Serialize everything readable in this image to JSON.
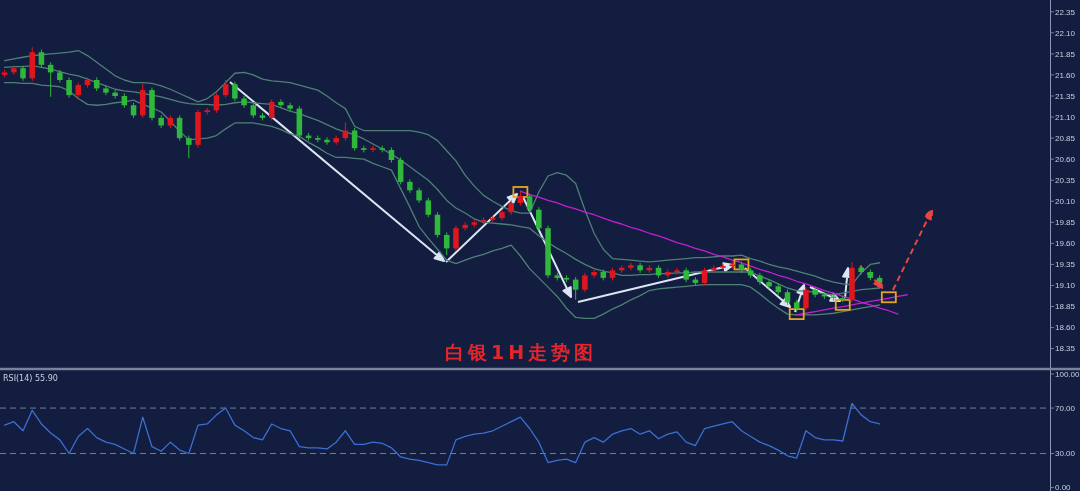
{
  "chart_data": [
    {
      "type": "candlestick",
      "title": "白银1H走势图",
      "categories": [
        null,
        null,
        null,
        null,
        null,
        null,
        null,
        null,
        null,
        null,
        null,
        null,
        null,
        null,
        null,
        null,
        null,
        null,
        null,
        null,
        null,
        null,
        null,
        null,
        null,
        null,
        null,
        null,
        null,
        null,
        null,
        null,
        null,
        null,
        null,
        null,
        null,
        null,
        null,
        null,
        null,
        null,
        null,
        null,
        null,
        null,
        null,
        null,
        null,
        null,
        null,
        null,
        null,
        null,
        null,
        null,
        null,
        null,
        null,
        null,
        null,
        null,
        null,
        null,
        null,
        null,
        null,
        null,
        null,
        null,
        null,
        null,
        null,
        null,
        null,
        null,
        null,
        null,
        null,
        null,
        null,
        null,
        null,
        null,
        null,
        null,
        null,
        null,
        null,
        null,
        null,
        null,
        null,
        null,
        null,
        null,
        null,
        null,
        null,
        null,
        null,
        null,
        null,
        null,
        null,
        null,
        null,
        null,
        null,
        null,
        null,
        null,
        null,
        null
      ],
      "ohlc": [
        [
          21.6,
          21.66,
          21.57,
          21.63
        ],
        [
          21.63,
          21.71,
          21.6,
          21.68
        ],
        [
          21.68,
          21.71,
          21.53,
          21.56
        ],
        [
          21.56,
          21.93,
          21.53,
          21.87
        ],
        [
          21.87,
          21.9,
          21.69,
          21.72
        ],
        [
          21.72,
          21.75,
          21.34,
          21.63
        ],
        [
          21.63,
          21.66,
          21.51,
          21.54
        ],
        [
          21.54,
          21.57,
          21.33,
          21.36
        ],
        [
          21.36,
          21.51,
          21.33,
          21.48
        ],
        [
          21.48,
          21.57,
          21.45,
          21.54
        ],
        [
          21.54,
          21.57,
          21.41,
          21.44
        ],
        [
          21.44,
          21.47,
          21.36,
          21.39
        ],
        [
          21.39,
          21.42,
          21.32,
          21.35
        ],
        [
          21.35,
          21.38,
          21.21,
          21.24
        ],
        [
          21.24,
          21.27,
          21.09,
          21.12
        ],
        [
          21.12,
          21.5,
          21.09,
          21.42
        ],
        [
          21.42,
          21.45,
          21.06,
          21.09
        ],
        [
          21.09,
          21.12,
          20.97,
          21.0
        ],
        [
          21.0,
          21.12,
          20.97,
          21.09
        ],
        [
          21.09,
          21.12,
          20.82,
          20.85
        ],
        [
          20.85,
          20.88,
          20.61,
          20.77
        ],
        [
          20.77,
          21.19,
          20.74,
          21.16
        ],
        [
          21.16,
          21.21,
          21.13,
          21.18
        ],
        [
          21.18,
          21.39,
          21.15,
          21.36
        ],
        [
          21.36,
          21.54,
          21.33,
          21.49
        ],
        [
          21.49,
          21.52,
          21.29,
          21.32
        ],
        [
          21.32,
          21.35,
          21.21,
          21.24
        ],
        [
          21.24,
          21.27,
          21.09,
          21.12
        ],
        [
          21.12,
          21.15,
          21.06,
          21.09
        ],
        [
          21.09,
          21.31,
          21.06,
          21.28
        ],
        [
          21.28,
          21.31,
          21.21,
          21.24
        ],
        [
          21.24,
          21.27,
          21.17,
          21.2
        ],
        [
          21.2,
          21.23,
          20.85,
          20.88
        ],
        [
          20.88,
          20.91,
          20.82,
          20.85
        ],
        [
          20.85,
          20.88,
          20.8,
          20.83
        ],
        [
          20.83,
          20.86,
          20.77,
          20.8
        ],
        [
          20.8,
          20.88,
          20.77,
          20.85
        ],
        [
          20.85,
          21.04,
          20.82,
          20.94
        ],
        [
          20.94,
          20.97,
          20.7,
          20.73
        ],
        [
          20.73,
          20.76,
          20.68,
          20.71
        ],
        [
          20.71,
          20.76,
          20.68,
          20.73
        ],
        [
          20.73,
          20.76,
          20.68,
          20.71
        ],
        [
          20.71,
          20.74,
          20.56,
          20.59
        ],
        [
          20.59,
          20.62,
          20.3,
          20.33
        ],
        [
          20.33,
          20.36,
          20.2,
          20.23
        ],
        [
          20.23,
          20.26,
          20.08,
          20.11
        ],
        [
          20.11,
          20.14,
          19.91,
          19.94
        ],
        [
          19.94,
          19.97,
          19.67,
          19.7
        ],
        [
          19.7,
          19.73,
          19.46,
          19.54
        ],
        [
          19.54,
          19.81,
          19.51,
          19.78
        ],
        [
          19.78,
          19.85,
          19.75,
          19.82
        ],
        [
          19.82,
          19.88,
          19.79,
          19.85
        ],
        [
          19.85,
          19.91,
          19.82,
          19.88
        ],
        [
          19.88,
          19.93,
          19.85,
          19.9
        ],
        [
          19.9,
          20.0,
          19.87,
          19.97
        ],
        [
          19.97,
          20.11,
          19.94,
          20.08
        ],
        [
          20.08,
          20.22,
          20.05,
          20.16
        ],
        [
          20.16,
          20.19,
          19.97,
          20.0
        ],
        [
          20.0,
          20.03,
          19.75,
          19.78
        ],
        [
          19.78,
          19.81,
          19.19,
          19.22
        ],
        [
          19.22,
          19.25,
          19.16,
          19.19
        ],
        [
          19.19,
          19.22,
          19.14,
          19.17
        ],
        [
          19.17,
          19.2,
          18.93,
          19.05
        ],
        [
          19.05,
          19.25,
          19.02,
          19.22
        ],
        [
          19.22,
          19.29,
          19.19,
          19.26
        ],
        [
          19.26,
          19.29,
          19.16,
          19.19
        ],
        [
          19.19,
          19.31,
          19.16,
          19.28
        ],
        [
          19.28,
          19.34,
          19.25,
          19.31
        ],
        [
          19.31,
          19.37,
          19.28,
          19.34
        ],
        [
          19.34,
          19.37,
          19.25,
          19.28
        ],
        [
          19.28,
          19.34,
          19.25,
          19.31
        ],
        [
          19.31,
          19.34,
          19.19,
          19.22
        ],
        [
          19.22,
          19.29,
          19.19,
          19.26
        ],
        [
          19.26,
          19.31,
          19.23,
          19.28
        ],
        [
          19.28,
          19.31,
          19.14,
          19.17
        ],
        [
          19.17,
          19.2,
          19.1,
          19.13
        ],
        [
          19.13,
          19.31,
          19.1,
          19.28
        ],
        [
          19.28,
          19.34,
          19.25,
          19.31
        ],
        [
          19.31,
          19.36,
          19.28,
          19.33
        ],
        [
          19.33,
          19.38,
          19.3,
          19.35
        ],
        [
          19.35,
          19.38,
          19.25,
          19.28
        ],
        [
          19.28,
          19.31,
          19.19,
          19.22
        ],
        [
          19.22,
          19.25,
          19.11,
          19.14
        ],
        [
          19.14,
          19.17,
          19.06,
          19.09
        ],
        [
          19.09,
          19.12,
          18.99,
          19.02
        ],
        [
          19.02,
          19.05,
          18.87,
          18.9
        ],
        [
          18.9,
          18.93,
          18.78,
          18.83
        ],
        [
          18.83,
          19.08,
          18.8,
          19.05
        ],
        [
          19.05,
          19.08,
          18.96,
          18.99
        ],
        [
          18.99,
          19.02,
          18.94,
          18.97
        ],
        [
          18.97,
          19.0,
          18.92,
          18.95
        ],
        [
          18.95,
          18.98,
          18.9,
          18.93
        ],
        [
          18.93,
          19.38,
          18.9,
          19.31
        ],
        [
          19.31,
          19.34,
          19.23,
          19.26
        ],
        [
          19.26,
          19.29,
          19.16,
          19.19
        ],
        [
          19.19,
          19.22,
          19.11,
          19.14
        ],
        null,
        null,
        null,
        null,
        null,
        null,
        null,
        null,
        null,
        null,
        null,
        null,
        null,
        null,
        null,
        null,
        null,
        null
      ],
      "colors": [
        "#e0161e",
        "#e0161e",
        "#2fb83c",
        "#e0161e",
        "#2fb83c",
        "#2fb83c",
        "#2fb83c",
        "#2fb83c",
        "#e0161e",
        "#e0161e",
        "#2fb83c",
        "#2fb83c",
        "#2fb83c",
        "#2fb83c",
        "#2fb83c",
        "#e0161e",
        "#2fb83c",
        "#2fb83c",
        "#e0161e",
        "#2fb83c",
        "#2fb83c",
        "#e0161e",
        "#e0161e",
        "#e0161e",
        "#e0161e",
        "#2fb83c",
        "#2fb83c",
        "#2fb83c",
        "#2fb83c",
        "#e0161e",
        "#2fb83c",
        "#2fb83c",
        "#2fb83c",
        "#2fb83c",
        "#2fb83c",
        "#2fb83c",
        "#e0161e",
        "#e0161e",
        "#2fb83c",
        "#2fb83c",
        "#e0161e",
        "#2fb83c",
        "#2fb83c",
        "#2fb83c",
        "#2fb83c",
        "#2fb83c",
        "#2fb83c",
        "#2fb83c",
        "#2fb83c",
        "#e0161e",
        "#e0161e",
        "#e0161e",
        "#e0161e",
        "#e0161e",
        "#e0161e",
        "#e0161e",
        "#e0161e",
        "#2fb83c",
        "#2fb83c",
        "#2fb83c",
        "#2fb83c",
        "#2fb83c",
        "#2fb83c",
        "#e0161e",
        "#e0161e",
        "#2fb83c",
        "#e0161e",
        "#e0161e",
        "#e0161e",
        "#2fb83c",
        "#e0161e",
        "#2fb83c",
        "#e0161e",
        "#e0161e",
        "#2fb83c",
        "#2fb83c",
        "#e0161e",
        "#e0161e",
        "#e0161e",
        "#e0161e",
        "#2fb83c",
        "#2fb83c",
        "#2fb83c",
        "#2fb83c",
        "#2fb83c",
        "#2fb83c",
        "#2fb83c",
        "#e0161e",
        "#2fb83c",
        "#2fb83c",
        "#2fb83c",
        "#2fb83c",
        "#e0161e",
        "#2fb83c",
        "#2fb83c",
        "#2fb83c",
        null,
        null,
        null,
        null,
        null,
        null,
        null,
        null,
        null,
        null,
        null,
        null,
        null,
        null,
        null,
        null,
        null,
        null
      ],
      "series": [
        {
          "type": "line",
          "color": "#4f8076",
          "values": [
            21.77,
            21.79,
            21.81,
            21.83,
            21.84,
            21.85,
            21.86,
            21.87,
            21.89,
            21.83,
            21.75,
            21.67,
            21.59,
            21.54,
            21.51,
            21.51,
            21.5,
            21.47,
            21.43,
            21.38,
            21.33,
            21.28,
            21.32,
            21.4,
            21.51,
            21.62,
            21.63,
            21.6,
            21.55,
            21.53,
            21.52,
            21.51,
            21.48,
            21.45,
            21.42,
            21.35,
            21.27,
            21.2,
            20.99,
            20.94,
            20.94,
            20.94,
            20.94,
            20.94,
            20.94,
            20.92,
            20.89,
            20.82,
            20.7,
            20.58,
            20.41,
            20.28,
            20.17,
            20.1,
            20.04,
            19.99,
            19.96,
            19.96,
            20.21,
            20.4,
            20.44,
            20.41,
            20.31,
            20.0,
            19.72,
            19.53,
            19.42,
            19.41,
            19.4,
            19.39,
            19.38,
            19.39,
            19.4,
            19.41,
            19.42,
            19.43,
            19.43,
            19.44,
            19.45,
            19.45,
            19.46,
            19.42,
            19.39,
            19.35,
            19.32,
            19.3,
            19.27,
            19.24,
            19.21,
            19.17,
            19.14,
            19.12,
            19.11,
            19.25,
            19.35,
            19.37,
            null,
            null,
            null,
            null,
            null,
            null,
            null,
            null,
            null,
            null,
            null,
            null,
            null,
            null,
            null,
            null,
            null,
            null
          ]
        },
        {
          "type": "line",
          "color": "#4f8076",
          "values": [
            21.69,
            21.7,
            21.7,
            21.71,
            21.69,
            21.67,
            21.64,
            21.61,
            21.59,
            21.55,
            21.51,
            21.47,
            21.43,
            21.41,
            21.4,
            21.38,
            21.36,
            21.34,
            21.31,
            21.28,
            21.26,
            21.25,
            21.25,
            21.24,
            21.25,
            21.27,
            21.28,
            21.27,
            21.26,
            21.25,
            21.21,
            21.17,
            21.14,
            21.1,
            21.06,
            21.01,
            20.96,
            20.92,
            20.89,
            20.84,
            20.78,
            20.72,
            20.66,
            20.59,
            20.51,
            20.43,
            20.35,
            20.24,
            20.11,
            20.02,
            19.96,
            19.89,
            19.85,
            19.84,
            19.83,
            19.82,
            19.8,
            19.78,
            19.69,
            19.61,
            19.54,
            19.48,
            19.41,
            19.35,
            19.3,
            19.27,
            19.25,
            19.22,
            19.22,
            19.23,
            19.23,
            19.24,
            19.24,
            19.25,
            19.25,
            19.26,
            19.26,
            19.26,
            19.26,
            19.26,
            19.26,
            19.26,
            19.21,
            19.17,
            19.12,
            19.07,
            19.04,
            19.03,
            19.02,
            19.0,
            18.99,
            19.01,
            19.03,
            19.05,
            19.06,
            19.07,
            null,
            null,
            null,
            null,
            null,
            null,
            null,
            null,
            null,
            null,
            null,
            null,
            null,
            null,
            null,
            null,
            null,
            null
          ]
        },
        {
          "type": "line",
          "color": "#4f8076",
          "values": [
            21.51,
            21.51,
            21.5,
            21.5,
            21.48,
            21.47,
            21.46,
            21.41,
            21.32,
            21.25,
            21.24,
            21.25,
            21.27,
            21.28,
            21.3,
            21.25,
            21.21,
            21.16,
            21.05,
            20.93,
            20.83,
            20.84,
            20.85,
            20.88,
            20.96,
            21.03,
            21.03,
            21.03,
            21.01,
            20.99,
            20.95,
            20.9,
            20.87,
            20.8,
            20.74,
            20.67,
            20.62,
            20.62,
            20.61,
            20.6,
            20.55,
            20.51,
            20.47,
            20.25,
            20.03,
            19.8,
            19.66,
            19.53,
            19.4,
            19.36,
            19.4,
            19.44,
            19.47,
            19.51,
            19.54,
            19.58,
            19.45,
            19.3,
            19.19,
            19.08,
            18.97,
            18.83,
            18.72,
            18.71,
            18.71,
            18.76,
            18.82,
            18.87,
            18.93,
            18.98,
            19.04,
            19.06,
            19.07,
            19.08,
            19.09,
            19.1,
            19.11,
            19.11,
            19.11,
            19.11,
            19.11,
            19.08,
            19.0,
            18.91,
            18.83,
            18.76,
            18.75,
            18.75,
            18.75,
            18.76,
            18.77,
            18.79,
            18.81,
            18.83,
            18.85,
            18.87,
            null,
            null,
            null,
            null,
            null,
            null,
            null,
            null,
            null,
            null,
            null,
            null,
            null,
            null,
            null,
            null,
            null,
            null
          ]
        },
        {
          "type": "line",
          "color": "#c21fd3",
          "values": [
            null,
            null,
            null,
            null,
            null,
            null,
            null,
            null,
            null,
            null,
            null,
            null,
            null,
            null,
            null,
            null,
            null,
            null,
            null,
            null,
            null,
            null,
            null,
            null,
            null,
            null,
            null,
            null,
            null,
            null,
            null,
            null,
            null,
            null,
            null,
            null,
            null,
            null,
            null,
            null,
            null,
            null,
            null,
            null,
            null,
            null,
            null,
            null,
            null,
            null,
            null,
            null,
            null,
            null,
            null,
            null,
            20.22,
            20.18,
            20.15,
            20.11,
            20.08,
            20.04,
            20.01,
            19.97,
            19.94,
            19.9,
            19.86,
            19.83,
            19.79,
            19.76,
            19.72,
            19.69,
            19.65,
            19.61,
            19.58,
            19.54,
            19.51,
            19.47,
            19.44,
            19.4,
            19.37,
            19.33,
            19.29,
            19.26,
            19.22,
            19.19,
            19.15,
            19.12,
            19.08,
            19.04,
            19.01,
            18.97,
            18.94,
            18.9,
            18.87,
            18.83,
            18.8,
            18.76,
            null,
            null,
            null,
            null,
            null,
            null,
            null,
            null,
            null,
            null,
            null,
            null,
            null,
            null,
            null,
            null
          ]
        },
        {
          "type": "line",
          "color": "#c21fd3",
          "values": [
            null,
            null,
            null,
            null,
            null,
            null,
            null,
            null,
            null,
            null,
            null,
            null,
            null,
            null,
            null,
            null,
            null,
            null,
            null,
            null,
            null,
            null,
            null,
            null,
            null,
            null,
            null,
            null,
            null,
            null,
            null,
            null,
            null,
            null,
            null,
            null,
            null,
            null,
            null,
            null,
            null,
            null,
            null,
            null,
            null,
            null,
            null,
            null,
            null,
            null,
            null,
            null,
            null,
            null,
            null,
            null,
            null,
            null,
            null,
            null,
            null,
            null,
            null,
            null,
            null,
            null,
            null,
            null,
            null,
            null,
            null,
            null,
            null,
            null,
            null,
            null,
            null,
            null,
            null,
            null,
            null,
            null,
            null,
            null,
            null,
            null,
            18.75,
            18.77,
            18.79,
            18.81,
            18.83,
            18.85,
            18.87,
            18.89,
            18.91,
            18.93,
            18.95,
            18.97,
            18.99,
            null,
            null,
            null,
            null,
            null,
            null,
            null,
            null,
            null,
            null,
            null,
            null,
            null,
            null,
            null
          ]
        },
        {
          "type": "scatter",
          "color": "#e9a321",
          "marker": "square",
          "values": [
            null,
            null,
            null,
            null,
            null,
            null,
            null,
            null,
            null,
            null,
            null,
            null,
            null,
            null,
            null,
            null,
            null,
            null,
            null,
            null,
            null,
            null,
            null,
            null,
            null,
            null,
            null,
            null,
            null,
            null,
            null,
            null,
            null,
            null,
            null,
            null,
            null,
            null,
            null,
            null,
            null,
            null,
            null,
            null,
            null,
            null,
            null,
            null,
            null,
            null,
            null,
            null,
            null,
            null,
            null,
            null,
            20.21,
            null,
            null,
            null,
            null,
            null,
            null,
            null,
            null,
            null,
            null,
            null,
            null,
            null,
            null,
            null,
            null,
            null,
            null,
            null,
            null,
            null,
            null,
            null,
            19.35,
            null,
            null,
            null,
            null,
            null,
            18.76,
            null,
            null,
            null,
            null,
            18.87,
            null,
            null,
            null,
            null,
            18.96,
            null,
            null,
            null,
            null,
            null,
            null,
            null,
            null,
            null,
            null,
            null,
            null,
            null,
            null,
            null,
            null,
            null
          ]
        }
      ],
      "ylim": [
        18.12,
        22.49
      ],
      "yticks": [
        18.35,
        {
          "value": 18.6,
          "label": "18.60"
        },
        18.85,
        {
          "value": 19.1,
          "label": "19.10"
        },
        19.35,
        {
          "value": 19.6,
          "label": "19.60"
        },
        19.85,
        {
          "value": 20.1,
          "label": "20.10"
        },
        20.35,
        {
          "value": 20.6,
          "label": "20.60"
        },
        20.85,
        {
          "value": 21.1,
          "label": "21.10"
        },
        21.35,
        {
          "value": 21.6,
          "label": "21.60"
        },
        21.85,
        {
          "value": 22.1,
          "label": "22.10"
        },
        22.35
      ],
      "tick_labels": "y"
    },
    {
      "type": "line",
      "title": "RSI(14) 55.90",
      "categories": [
        null,
        null,
        null,
        null,
        null,
        null,
        null,
        null,
        null,
        null,
        null,
        null,
        null,
        null,
        null,
        null,
        null,
        null,
        null,
        null,
        null,
        null,
        null,
        null,
        null,
        null,
        null,
        null,
        null,
        null,
        null,
        null,
        null,
        null,
        null,
        null,
        null,
        null,
        null,
        null,
        null,
        null,
        null,
        null,
        null,
        null,
        null,
        null,
        null,
        null,
        null,
        null,
        null,
        null,
        null,
        null,
        null,
        null,
        null,
        null,
        null,
        null,
        null,
        null,
        null,
        null,
        null,
        null,
        null,
        null,
        null,
        null,
        null,
        null,
        null,
        null,
        null,
        null,
        null,
        null,
        null,
        null,
        null,
        null,
        null,
        null,
        null,
        null,
        null,
        null,
        null,
        null,
        null,
        null,
        null,
        null,
        null,
        null,
        null,
        null,
        null,
        null,
        null,
        null,
        null,
        null,
        null,
        null,
        null,
        null,
        null,
        null,
        null,
        null
      ],
      "series": [
        {
          "color": "#3b6fd4",
          "values": [
            55,
            58,
            50,
            68,
            56,
            48,
            42,
            30,
            45,
            52,
            44,
            40,
            38,
            34,
            30,
            62,
            36,
            32,
            40,
            33,
            30,
            55,
            56,
            64,
            70,
            55,
            50,
            44,
            42,
            56,
            52,
            50,
            36,
            35,
            35,
            34,
            40,
            50,
            38,
            38,
            40,
            39,
            35,
            27,
            25,
            24,
            22,
            20,
            20,
            42,
            45,
            47,
            48,
            50,
            54,
            58,
            62,
            52,
            40,
            22,
            24,
            25,
            22,
            40,
            44,
            40,
            47,
            50,
            52,
            47,
            50,
            43,
            47,
            49,
            40,
            37,
            52,
            54,
            56,
            58,
            50,
            45,
            40,
            37,
            33,
            28,
            26,
            50,
            44,
            42,
            42,
            41,
            74,
            64,
            58,
            56,
            null,
            null,
            null,
            null,
            null,
            null,
            null,
            null,
            null,
            null,
            null,
            null,
            null,
            null,
            null,
            null,
            null,
            null
          ]
        }
      ],
      "ylim": [
        -3,
        103.5
      ],
      "yticks": [
        {
          "value": 0,
          "label": "0.00"
        },
        {
          "value": 30,
          "label": "30.00"
        },
        {
          "value": 70,
          "label": "70.00"
        },
        {
          "value": 100,
          "label": "100.00"
        }
      ],
      "ref_lines": [
        {
          "axis": "y",
          "value": 70,
          "color": "#8a93ad",
          "line_style": "dashed"
        },
        {
          "axis": "y",
          "value": 30,
          "color": "#8a93ad",
          "line_style": "dashed"
        }
      ],
      "tick_labels": "y"
    }
  ]
}
